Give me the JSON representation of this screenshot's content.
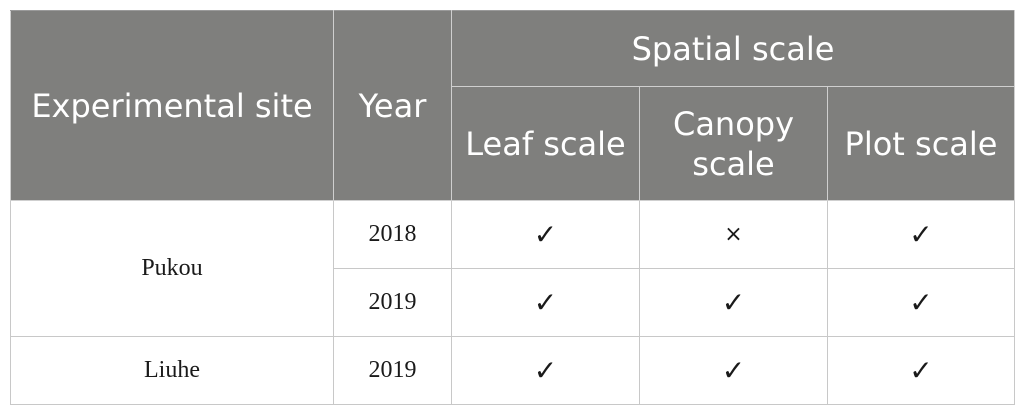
{
  "header": {
    "experimental_site": "Experimental site",
    "year": "Year",
    "spatial_scale": "Spatial scale",
    "leaf_scale": "Leaf scale",
    "canopy_scale": "Canopy scale",
    "plot_scale": "Plot scale"
  },
  "rows": [
    {
      "site": "Pukou",
      "year": "2018",
      "leaf": "✓",
      "canopy": "×",
      "plot": "✓"
    },
    {
      "site": "Pukou",
      "year": "2019",
      "leaf": "✓",
      "canopy": "✓",
      "plot": "✓"
    },
    {
      "site": "Liuhe",
      "year": "2019",
      "leaf": "✓",
      "canopy": "✓",
      "plot": "✓"
    }
  ]
}
